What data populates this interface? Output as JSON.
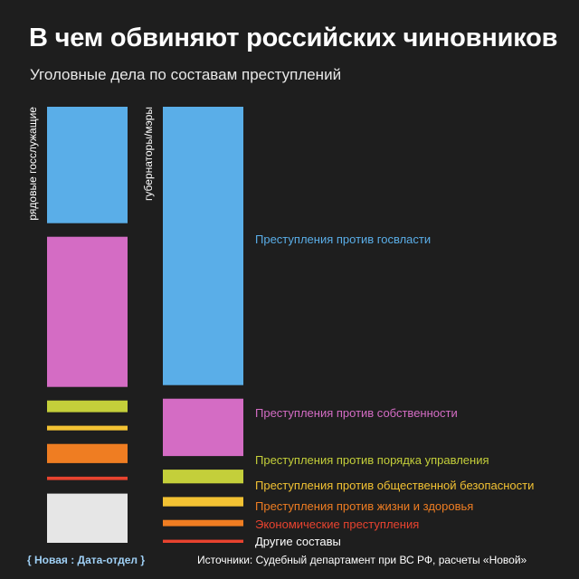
{
  "header": {
    "title": "В чем обвиняют российских чиновников",
    "subtitle": "Уголовные дела по составам преступлений"
  },
  "footer": {
    "brand": "{ Новая : Дата-отдел }",
    "source": "Источники: Судебный департамент при ВС РФ, расчеты «Новой»"
  },
  "chart_data": {
    "type": "bar",
    "stacked": true,
    "orientation": "vertical",
    "normalized": true,
    "categories": [
      "рядовые госслужащие",
      "губернаторы/мэры"
    ],
    "series": [
      {
        "name": "Преступления против госвласти",
        "color": "#5aaee8",
        "values": [
          27.9,
          62.6
        ]
      },
      {
        "name": "Преступления против собственности",
        "color": "#d46cc4",
        "values": [
          36.0,
          12.9
        ]
      },
      {
        "name": "Преступления против порядка управления",
        "color": "#c4cf3a",
        "values": [
          2.8,
          3.1
        ]
      },
      {
        "name": "Преступления против общественной безопасности",
        "color": "#f2c233",
        "values": [
          1.1,
          2.1
        ]
      },
      {
        "name": "Преступления против жизни и здоровья",
        "color": "#ef7d22",
        "values": [
          4.6,
          1.4
        ]
      },
      {
        "name": "Экономические преступления",
        "color": "#e8432f",
        "values": [
          0.8,
          0.7
        ]
      },
      {
        "name": "Другие составы",
        "color": "#e6e6e6",
        "values": [
          11.8,
          0.0
        ]
      }
    ]
  }
}
